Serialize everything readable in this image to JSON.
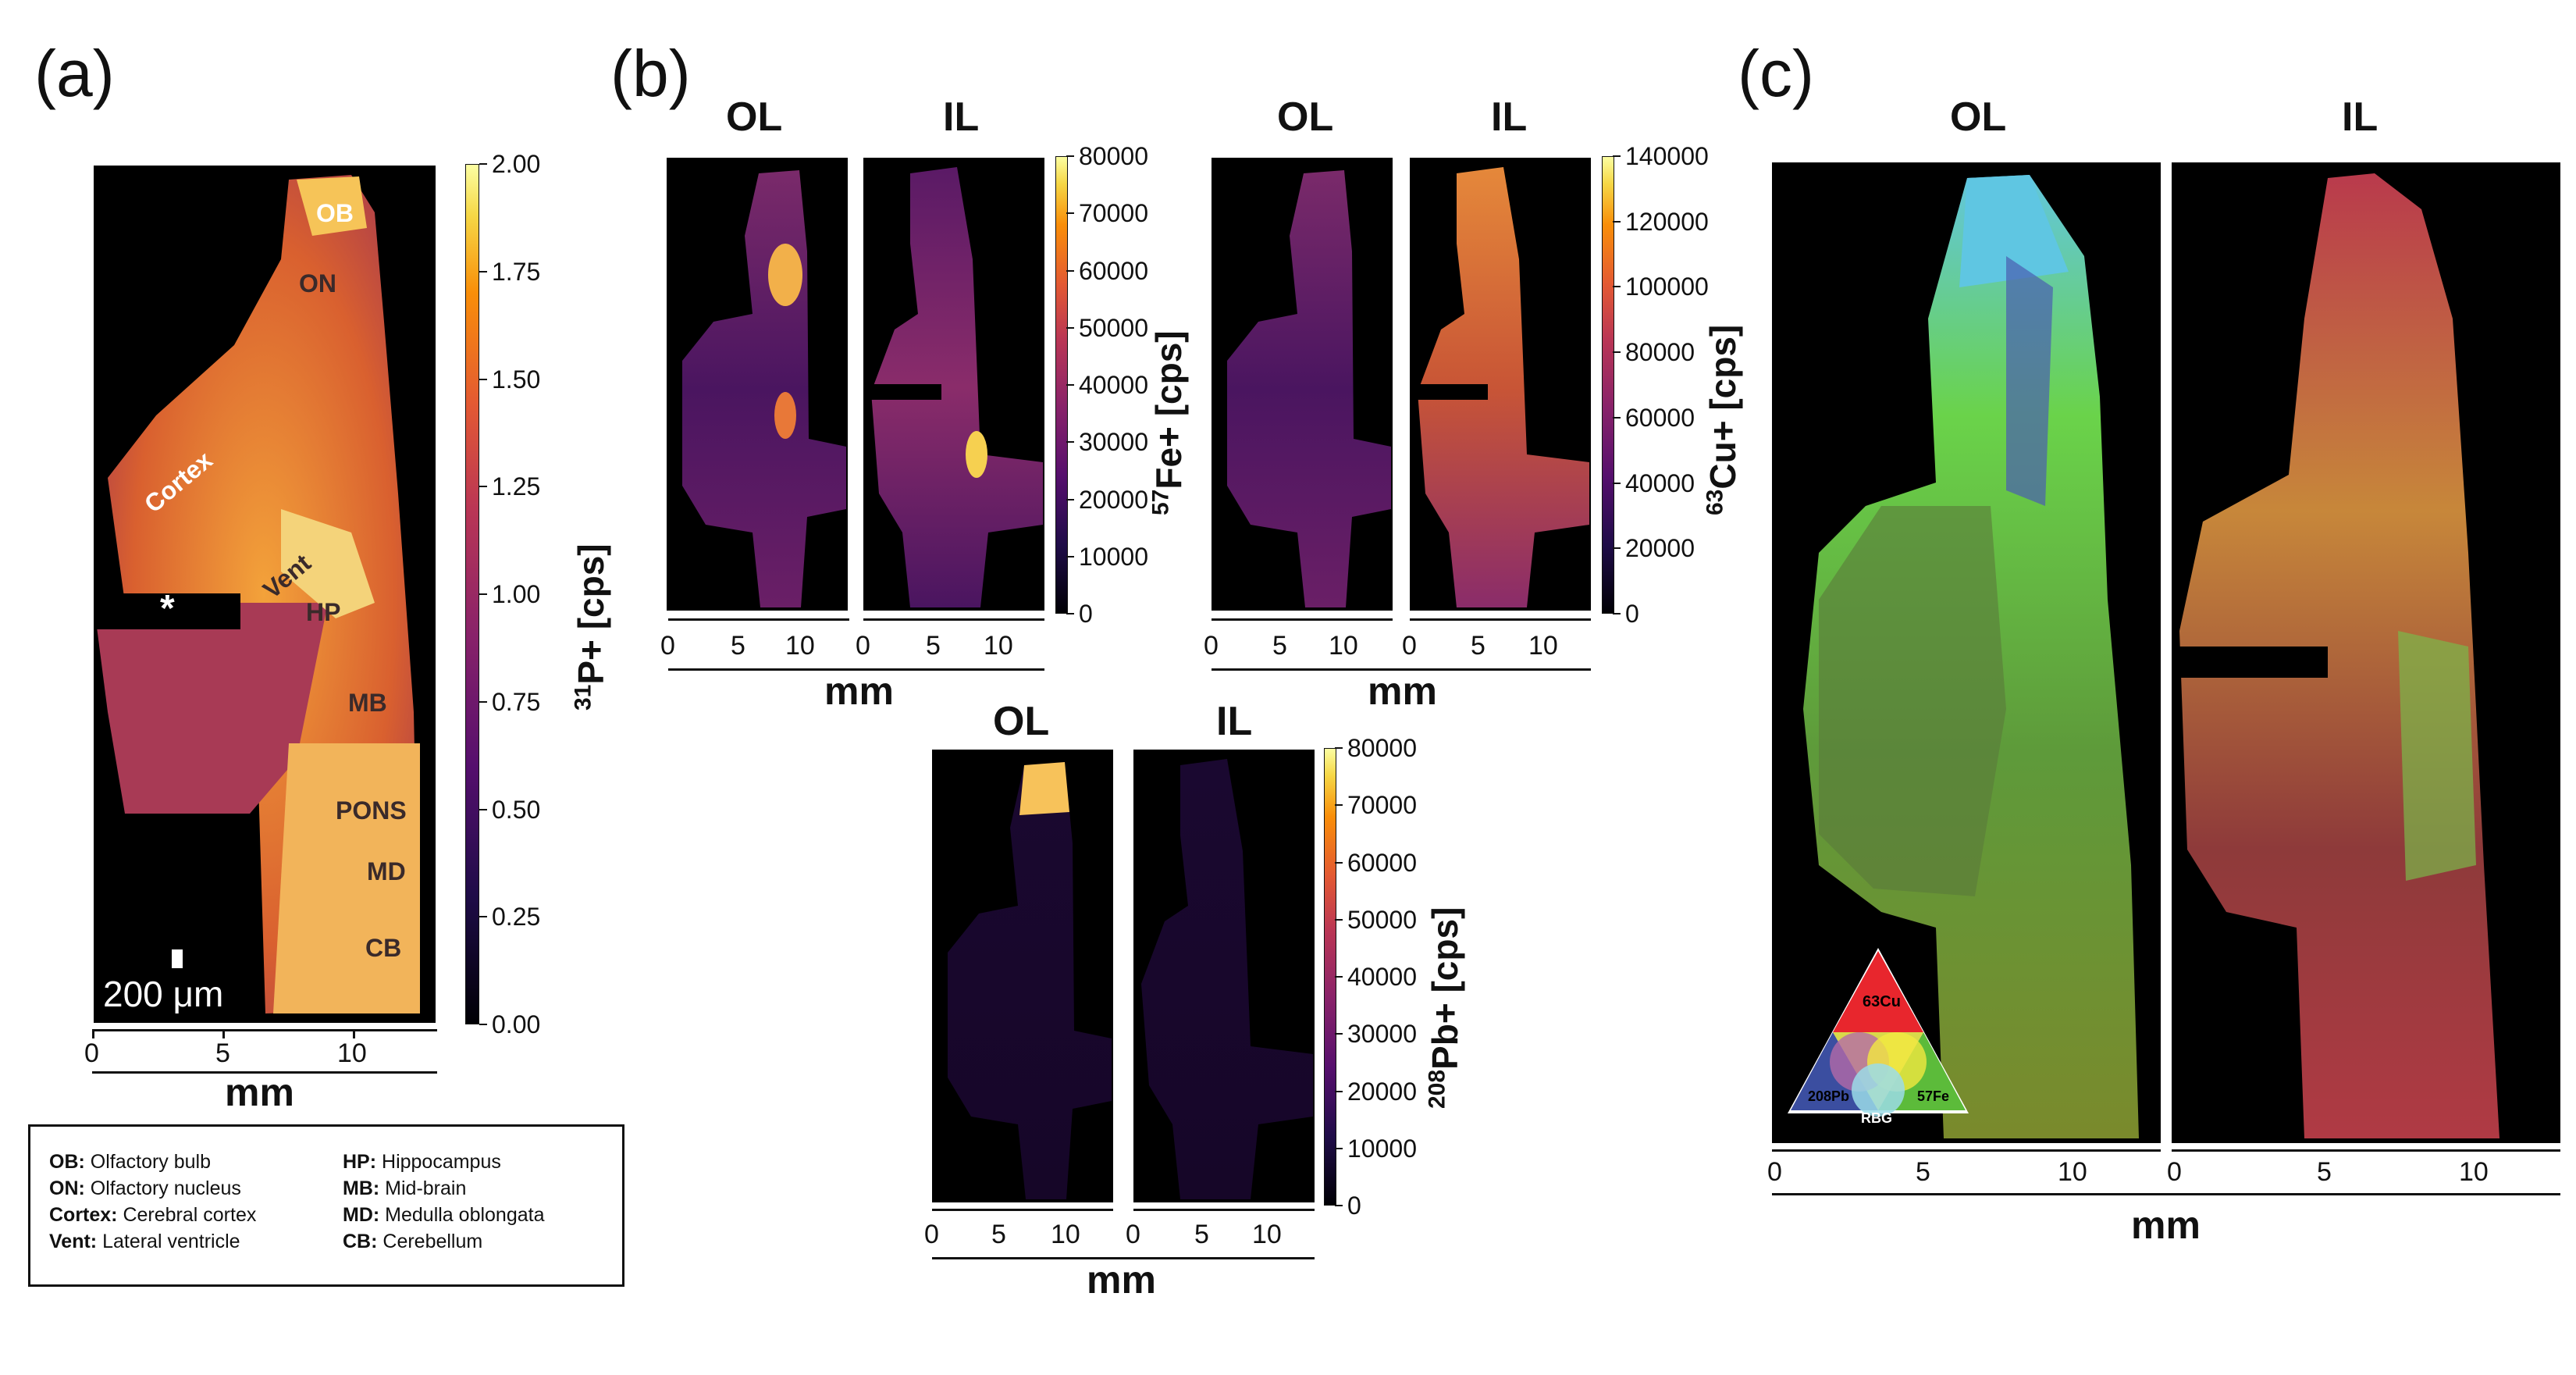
{
  "panels": {
    "a": {
      "label": "(a)",
      "scalebar_text": "200 μm",
      "x_ticks": [
        "0",
        "5",
        "10"
      ],
      "x_title": "mm",
      "colorbar": {
        "ticks": [
          "2.00",
          "1.75",
          "1.50",
          "1.25",
          "1.00",
          "0.75",
          "0.50",
          "0.25",
          "0.00"
        ],
        "label_iso": "31",
        "label_el": "P",
        "label_rest": "+ [cps]"
      },
      "regions": [
        "OB",
        "ON",
        "Cortex",
        "Vent",
        "HP",
        "MB",
        "PONS",
        "MD",
        "CB"
      ],
      "asterisk": "*"
    },
    "b": {
      "label": "(b)",
      "fe": {
        "headers": [
          "OL",
          "IL"
        ],
        "x_ticks": [
          "0",
          "5",
          "10",
          "0",
          "5",
          "10"
        ],
        "x_title": "mm",
        "colorbar_ticks": [
          "80000",
          "70000",
          "60000",
          "50000",
          "40000",
          "30000",
          "20000",
          "10000",
          "0"
        ],
        "label_iso": "57",
        "label_el": "Fe",
        "label_rest": "+ [cps]"
      },
      "cu": {
        "headers": [
          "OL",
          "IL"
        ],
        "x_ticks": [
          "0",
          "5",
          "10",
          "0",
          "5",
          "10"
        ],
        "x_title": "mm",
        "colorbar_ticks": [
          "140000",
          "120000",
          "100000",
          "80000",
          "60000",
          "40000",
          "20000",
          "0"
        ],
        "label_iso": "63",
        "label_el": "Cu",
        "label_rest": "+ [cps]"
      },
      "pb": {
        "headers": [
          "OL",
          "IL"
        ],
        "x_ticks": [
          "0",
          "5",
          "10",
          "0",
          "5",
          "10"
        ],
        "x_title": "mm",
        "colorbar_ticks": [
          "80000",
          "70000",
          "60000",
          "50000",
          "40000",
          "30000",
          "20000",
          "10000",
          "0"
        ],
        "label_iso": "208",
        "label_el": "Pb",
        "label_rest": "+ [cps]"
      }
    },
    "c": {
      "label": "(c)",
      "headers": [
        "OL",
        "IL"
      ],
      "x_ticks": [
        "0",
        "5",
        "10",
        "0",
        "5",
        "10"
      ],
      "x_title": "mm",
      "triangle": {
        "cu": "63Cu",
        "pb": "208Pb",
        "fe": "57Fe",
        "rgb": "RBG"
      }
    }
  },
  "legend": {
    "col1": [
      {
        "abbr": "OB:",
        "text": " Olfactory bulb"
      },
      {
        "abbr": "ON:",
        "text": " Olfactory nucleus"
      },
      {
        "abbr": "Cortex:",
        "text": " Cerebral cortex"
      },
      {
        "abbr": "Vent:",
        "text": " Lateral ventricle"
      }
    ],
    "col2": [
      {
        "abbr": "HP:",
        "text": " Hippocampus"
      },
      {
        "abbr": "MB:",
        "text": " Mid-brain"
      },
      {
        "abbr": "MD:",
        "text": " Medulla oblongata"
      },
      {
        "abbr": "CB:",
        "text": " Cerebellum"
      }
    ]
  },
  "colors": {
    "inferno_top": "#fcffa4",
    "inferno_mid": "#dd513a",
    "inferno_low": "#56106e",
    "inferno_bottom": "#000004",
    "rgb_red": "#e8262d",
    "rgb_green": "#5cbb3a",
    "rgb_blue": "#3b4ea0"
  }
}
